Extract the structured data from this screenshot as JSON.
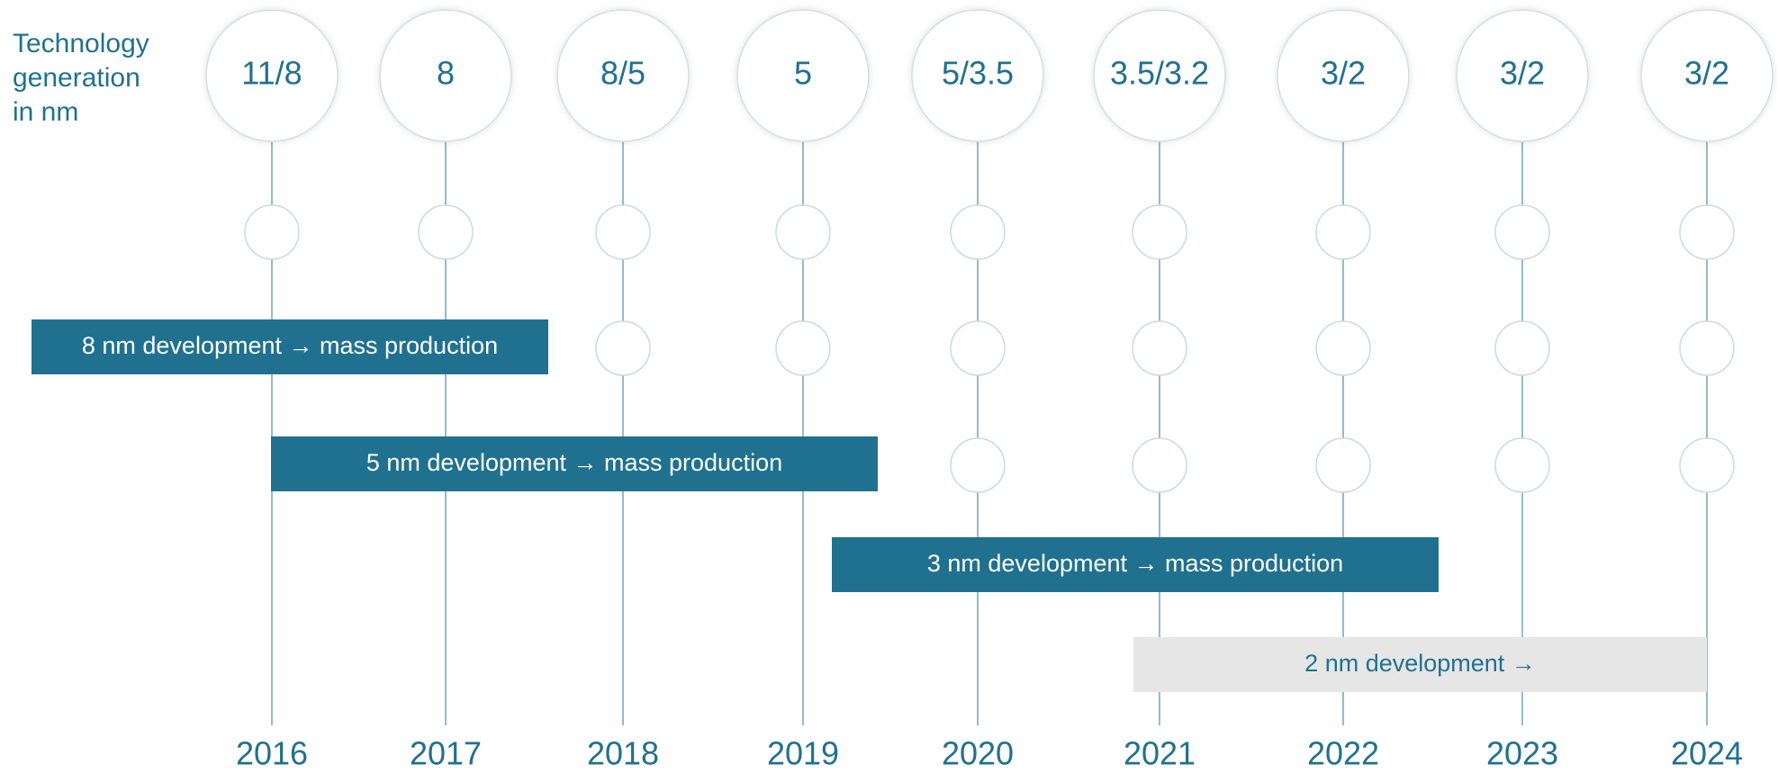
{
  "label_lines": [
    "Technology",
    "generation",
    "in nm"
  ],
  "columns": [
    {
      "year": "2016",
      "node": "11/8"
    },
    {
      "year": "2017",
      "node": "8"
    },
    {
      "year": "2018",
      "node": "8/5"
    },
    {
      "year": "2019",
      "node": "5"
    },
    {
      "year": "2020",
      "node": "5/3.5"
    },
    {
      "year": "2021",
      "node": "3.5/3.2"
    },
    {
      "year": "2022",
      "node": "3/2"
    },
    {
      "year": "2023",
      "node": "3/2"
    },
    {
      "year": "2024",
      "node": "3/2"
    }
  ],
  "phases": [
    {
      "text": "8 nm development → mass production",
      "style": "dark"
    },
    {
      "text": "5 nm development → mass production",
      "style": "dark"
    },
    {
      "text": "3 nm development → mass production",
      "style": "dark"
    },
    {
      "text": "2 nm development →",
      "style": "light"
    }
  ]
}
